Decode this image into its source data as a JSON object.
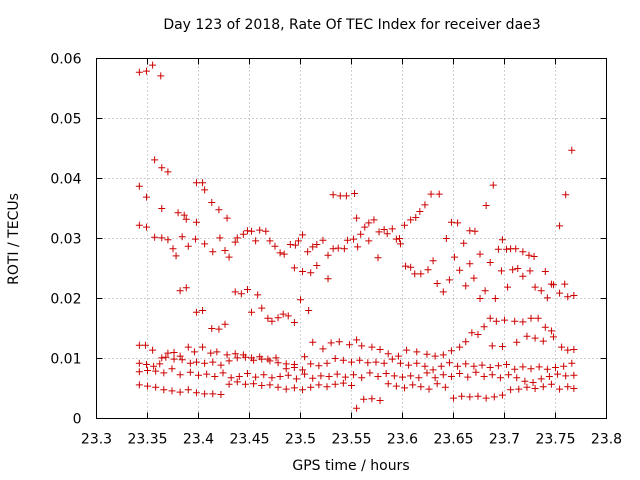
{
  "chart_data": {
    "type": "scatter",
    "title": "Day 123 of 2018, Rate Of TEC Index for receiver dae3",
    "xlabel": "GPS time / hours",
    "ylabel": "ROTI / TECUs",
    "xlim": [
      23.3,
      23.8
    ],
    "ylim": [
      0,
      0.06
    ],
    "x_ticks": [
      "23.3",
      "23.35",
      "23.4",
      "23.45",
      "23.5",
      "23.55",
      "23.6",
      "23.65",
      "23.7",
      "23.75",
      "23.8"
    ],
    "y_ticks": [
      "0",
      "0.01",
      "0.02",
      "0.03",
      "0.04",
      "0.05",
      "0.06"
    ],
    "marker": "+",
    "marker_color": "#cc0000",
    "grid": true,
    "points": [
      [
        23.342,
        0.0577
      ],
      [
        23.349,
        0.0579
      ],
      [
        23.355,
        0.0589
      ],
      [
        23.363,
        0.0571
      ],
      [
        23.342,
        0.0387
      ],
      [
        23.349,
        0.0369
      ],
      [
        23.357,
        0.0431
      ],
      [
        23.364,
        0.0418
      ],
      [
        23.37,
        0.0411
      ],
      [
        23.364,
        0.035
      ],
      [
        23.38,
        0.0343
      ],
      [
        23.386,
        0.0339
      ],
      [
        23.388,
        0.0332
      ],
      [
        23.398,
        0.0393
      ],
      [
        23.404,
        0.0393
      ],
      [
        23.406,
        0.0381
      ],
      [
        23.413,
        0.036
      ],
      [
        23.42,
        0.0348
      ],
      [
        23.428,
        0.0334
      ],
      [
        23.342,
        0.0322
      ],
      [
        23.349,
        0.0319
      ],
      [
        23.357,
        0.0302
      ],
      [
        23.364,
        0.0301
      ],
      [
        23.37,
        0.0298
      ],
      [
        23.375,
        0.0283
      ],
      [
        23.378,
        0.0271
      ],
      [
        23.384,
        0.0303
      ],
      [
        23.39,
        0.0287
      ],
      [
        23.398,
        0.0327
      ],
      [
        23.397,
        0.0299
      ],
      [
        23.406,
        0.0291
      ],
      [
        23.414,
        0.0278
      ],
      [
        23.421,
        0.0301
      ],
      [
        23.426,
        0.028
      ],
      [
        23.43,
        0.0269
      ],
      [
        23.436,
        0.0294
      ],
      [
        23.438,
        0.0301
      ],
      [
        23.444,
        0.0307
      ],
      [
        23.448,
        0.0313
      ],
      [
        23.452,
        0.0312
      ],
      [
        23.456,
        0.0296
      ],
      [
        23.46,
        0.0314
      ],
      [
        23.466,
        0.0312
      ],
      [
        23.47,
        0.0296
      ],
      [
        23.475,
        0.0287
      ],
      [
        23.48,
        0.0276
      ],
      [
        23.484,
        0.0274
      ],
      [
        23.49,
        0.029
      ],
      [
        23.495,
        0.0289
      ],
      [
        23.498,
        0.0296
      ],
      [
        23.502,
        0.0306
      ],
      [
        23.507,
        0.0278
      ],
      [
        23.512,
        0.0286
      ],
      [
        23.516,
        0.029
      ],
      [
        23.522,
        0.0297
      ],
      [
        23.527,
        0.0272
      ],
      [
        23.532,
        0.0283
      ],
      [
        23.537,
        0.0284
      ],
      [
        23.543,
        0.0283
      ],
      [
        23.546,
        0.0297
      ],
      [
        23.552,
        0.0299
      ],
      [
        23.556,
        0.0286
      ],
      [
        23.559,
        0.0307
      ],
      [
        23.563,
        0.0319
      ],
      [
        23.567,
        0.0296
      ],
      [
        23.572,
        0.0331
      ],
      [
        23.577,
        0.0311
      ],
      [
        23.582,
        0.0315
      ],
      [
        23.585,
        0.0308
      ],
      [
        23.59,
        0.0316
      ],
      [
        23.594,
        0.0299
      ],
      [
        23.598,
        0.0291
      ],
      [
        23.602,
        0.0322
      ],
      [
        23.608,
        0.0331
      ],
      [
        23.613,
        0.0335
      ],
      [
        23.617,
        0.0345
      ],
      [
        23.622,
        0.0356
      ],
      [
        23.628,
        0.0374
      ],
      [
        23.636,
        0.0374
      ],
      [
        23.643,
        0.03
      ],
      [
        23.648,
        0.0327
      ],
      [
        23.654,
        0.0326
      ],
      [
        23.66,
        0.0292
      ],
      [
        23.666,
        0.0313
      ],
      [
        23.671,
        0.0312
      ],
      [
        23.676,
        0.0274
      ],
      [
        23.682,
        0.0355
      ],
      [
        23.689,
        0.0389
      ],
      [
        23.694,
        0.0282
      ],
      [
        23.698,
        0.0298
      ],
      [
        23.702,
        0.0282
      ],
      [
        23.706,
        0.0283
      ],
      [
        23.711,
        0.0283
      ],
      [
        23.718,
        0.0278
      ],
      [
        23.724,
        0.0272
      ],
      [
        23.729,
        0.027
      ],
      [
        23.74,
        0.0245
      ],
      [
        23.746,
        0.0224
      ],
      [
        23.754,
        0.0321
      ],
      [
        23.76,
        0.0373
      ],
      [
        23.766,
        0.0447
      ],
      [
        23.532,
        0.0373
      ],
      [
        23.539,
        0.0371
      ],
      [
        23.545,
        0.0371
      ],
      [
        23.553,
        0.0375
      ],
      [
        23.555,
        0.0334
      ],
      [
        23.567,
        0.0326
      ],
      [
        23.576,
        0.0268
      ],
      [
        23.597,
        0.03
      ],
      [
        23.603,
        0.0254
      ],
      [
        23.608,
        0.0252
      ],
      [
        23.612,
        0.0241
      ],
      [
        23.618,
        0.0241
      ],
      [
        23.625,
        0.0248
      ],
      [
        23.63,
        0.0263
      ],
      [
        23.634,
        0.0225
      ],
      [
        23.64,
        0.0211
      ],
      [
        23.646,
        0.0231
      ],
      [
        23.651,
        0.0269
      ],
      [
        23.656,
        0.0247
      ],
      [
        23.662,
        0.0221
      ],
      [
        23.666,
        0.0258
      ],
      [
        23.67,
        0.0234
      ],
      [
        23.676,
        0.02
      ],
      [
        23.681,
        0.0213
      ],
      [
        23.686,
        0.026
      ],
      [
        23.691,
        0.02
      ],
      [
        23.697,
        0.0246
      ],
      [
        23.703,
        0.0219
      ],
      [
        23.708,
        0.0248
      ],
      [
        23.713,
        0.025
      ],
      [
        23.718,
        0.0237
      ],
      [
        23.725,
        0.0246
      ],
      [
        23.73,
        0.0219
      ],
      [
        23.736,
        0.0213
      ],
      [
        23.742,
        0.0201
      ],
      [
        23.748,
        0.0223
      ],
      [
        23.754,
        0.0209
      ],
      [
        23.759,
        0.0224
      ],
      [
        23.762,
        0.0203
      ],
      [
        23.768,
        0.0205
      ],
      [
        23.382,
        0.0213
      ],
      [
        23.388,
        0.0218
      ],
      [
        23.398,
        0.0177
      ],
      [
        23.404,
        0.018
      ],
      [
        23.413,
        0.015
      ],
      [
        23.42,
        0.0149
      ],
      [
        23.426,
        0.0157
      ],
      [
        23.436,
        0.0211
      ],
      [
        23.442,
        0.0208
      ],
      [
        23.448,
        0.0215
      ],
      [
        23.452,
        0.0177
      ],
      [
        23.458,
        0.0206
      ],
      [
        23.462,
        0.0184
      ],
      [
        23.468,
        0.0167
      ],
      [
        23.472,
        0.0162
      ],
      [
        23.478,
        0.0168
      ],
      [
        23.483,
        0.0174
      ],
      [
        23.488,
        0.0171
      ],
      [
        23.494,
        0.016
      ],
      [
        23.5,
        0.0198
      ],
      [
        23.51,
        0.0243
      ],
      [
        23.516,
        0.0255
      ],
      [
        23.508,
        0.018
      ],
      [
        23.494,
        0.0251
      ],
      [
        23.502,
        0.0245
      ],
      [
        23.527,
        0.0233
      ],
      [
        23.686,
        0.0167
      ],
      [
        23.692,
        0.0162
      ],
      [
        23.7,
        0.0164
      ],
      [
        23.71,
        0.0162
      ],
      [
        23.718,
        0.0161
      ],
      [
        23.726,
        0.0167
      ],
      [
        23.733,
        0.0167
      ],
      [
        23.74,
        0.0152
      ],
      [
        23.746,
        0.0146
      ],
      [
        23.342,
        0.0122
      ],
      [
        23.348,
        0.0122
      ],
      [
        23.355,
        0.0114
      ],
      [
        23.364,
        0.0101
      ],
      [
        23.37,
        0.0109
      ],
      [
        23.376,
        0.011
      ],
      [
        23.384,
        0.0098
      ],
      [
        23.39,
        0.0119
      ],
      [
        23.396,
        0.0111
      ],
      [
        23.404,
        0.0119
      ],
      [
        23.412,
        0.0109
      ],
      [
        23.418,
        0.0111
      ],
      [
        23.428,
        0.0106
      ],
      [
        23.436,
        0.0108
      ],
      [
        23.444,
        0.0106
      ],
      [
        23.452,
        0.0101
      ],
      [
        23.46,
        0.0103
      ],
      [
        23.468,
        0.0099
      ],
      [
        23.476,
        0.0101
      ],
      [
        23.486,
        0.0091
      ],
      [
        23.494,
        0.009
      ],
      [
        23.504,
        0.0103
      ],
      [
        23.512,
        0.0127
      ],
      [
        23.522,
        0.0116
      ],
      [
        23.53,
        0.0126
      ],
      [
        23.538,
        0.0128
      ],
      [
        23.548,
        0.0123
      ],
      [
        23.555,
        0.0131
      ],
      [
        23.56,
        0.0121
      ],
      [
        23.57,
        0.0119
      ],
      [
        23.578,
        0.0115
      ],
      [
        23.586,
        0.0108
      ],
      [
        23.596,
        0.0104
      ],
      [
        23.604,
        0.0114
      ],
      [
        23.614,
        0.0111
      ],
      [
        23.624,
        0.0107
      ],
      [
        23.632,
        0.0104
      ],
      [
        23.64,
        0.0106
      ],
      [
        23.648,
        0.0113
      ],
      [
        23.656,
        0.0119
      ],
      [
        23.662,
        0.0128
      ],
      [
        23.668,
        0.0143
      ],
      [
        23.674,
        0.014
      ],
      [
        23.68,
        0.0153
      ],
      [
        23.688,
        0.0121
      ],
      [
        23.698,
        0.012
      ],
      [
        23.712,
        0.0127
      ],
      [
        23.722,
        0.0137
      ],
      [
        23.73,
        0.0134
      ],
      [
        23.738,
        0.0129
      ],
      [
        23.748,
        0.0136
      ],
      [
        23.756,
        0.0119
      ],
      [
        23.762,
        0.0114
      ],
      [
        23.768,
        0.0115
      ],
      [
        23.342,
        0.0092
      ],
      [
        23.349,
        0.009
      ],
      [
        23.356,
        0.0087
      ],
      [
        23.362,
        0.0091
      ],
      [
        23.368,
        0.0102
      ],
      [
        23.376,
        0.0099
      ],
      [
        23.382,
        0.0104
      ],
      [
        23.392,
        0.0092
      ],
      [
        23.398,
        0.0094
      ],
      [
        23.406,
        0.0092
      ],
      [
        23.414,
        0.0094
      ],
      [
        23.422,
        0.0089
      ],
      [
        23.43,
        0.0096
      ],
      [
        23.438,
        0.0101
      ],
      [
        23.446,
        0.0102
      ],
      [
        23.454,
        0.0097
      ],
      [
        23.462,
        0.0099
      ],
      [
        23.47,
        0.0096
      ],
      [
        23.478,
        0.0093
      ],
      [
        23.486,
        0.0083
      ],
      [
        23.494,
        0.0085
      ],
      [
        23.502,
        0.0081
      ],
      [
        23.51,
        0.0091
      ],
      [
        23.518,
        0.0088
      ],
      [
        23.526,
        0.0092
      ],
      [
        23.534,
        0.01
      ],
      [
        23.542,
        0.0097
      ],
      [
        23.55,
        0.0094
      ],
      [
        23.558,
        0.0097
      ],
      [
        23.566,
        0.0093
      ],
      [
        23.574,
        0.0094
      ],
      [
        23.582,
        0.0092
      ],
      [
        23.59,
        0.0099
      ],
      [
        23.598,
        0.0092
      ],
      [
        23.606,
        0.0089
      ],
      [
        23.614,
        0.0092
      ],
      [
        23.622,
        0.0087
      ],
      [
        23.63,
        0.0081
      ],
      [
        23.638,
        0.0087
      ],
      [
        23.646,
        0.0093
      ],
      [
        23.654,
        0.0087
      ],
      [
        23.662,
        0.0091
      ],
      [
        23.67,
        0.0087
      ],
      [
        23.678,
        0.0089
      ],
      [
        23.686,
        0.0085
      ],
      [
        23.694,
        0.0088
      ],
      [
        23.702,
        0.009
      ],
      [
        23.71,
        0.0082
      ],
      [
        23.718,
        0.0086
      ],
      [
        23.726,
        0.0083
      ],
      [
        23.734,
        0.0086
      ],
      [
        23.742,
        0.0082
      ],
      [
        23.75,
        0.0085
      ],
      [
        23.758,
        0.0087
      ],
      [
        23.766,
        0.0092
      ],
      [
        23.342,
        0.0078
      ],
      [
        23.35,
        0.008
      ],
      [
        23.358,
        0.0079
      ],
      [
        23.366,
        0.0076
      ],
      [
        23.374,
        0.0083
      ],
      [
        23.382,
        0.0073
      ],
      [
        23.392,
        0.0077
      ],
      [
        23.4,
        0.0072
      ],
      [
        23.408,
        0.0074
      ],
      [
        23.416,
        0.007
      ],
      [
        23.424,
        0.0076
      ],
      [
        23.432,
        0.0068
      ],
      [
        23.44,
        0.007
      ],
      [
        23.448,
        0.0075
      ],
      [
        23.456,
        0.0069
      ],
      [
        23.464,
        0.0073
      ],
      [
        23.472,
        0.0068
      ],
      [
        23.48,
        0.007
      ],
      [
        23.488,
        0.0072
      ],
      [
        23.496,
        0.0066
      ],
      [
        23.504,
        0.0074
      ],
      [
        23.512,
        0.0067
      ],
      [
        23.52,
        0.0071
      ],
      [
        23.528,
        0.007
      ],
      [
        23.536,
        0.0074
      ],
      [
        23.544,
        0.0069
      ],
      [
        23.552,
        0.0073
      ],
      [
        23.56,
        0.0068
      ],
      [
        23.568,
        0.0076
      ],
      [
        23.576,
        0.007
      ],
      [
        23.584,
        0.0075
      ],
      [
        23.592,
        0.0071
      ],
      [
        23.6,
        0.0069
      ],
      [
        23.608,
        0.0071
      ],
      [
        23.616,
        0.0068
      ],
      [
        23.624,
        0.0076
      ],
      [
        23.632,
        0.0068
      ],
      [
        23.64,
        0.0073
      ],
      [
        23.648,
        0.007
      ],
      [
        23.656,
        0.0075
      ],
      [
        23.664,
        0.0069
      ],
      [
        23.672,
        0.0077
      ],
      [
        23.68,
        0.007
      ],
      [
        23.688,
        0.0073
      ],
      [
        23.696,
        0.0068
      ],
      [
        23.704,
        0.0073
      ],
      [
        23.712,
        0.0068
      ],
      [
        23.72,
        0.0062
      ],
      [
        23.728,
        0.006
      ],
      [
        23.736,
        0.0066
      ],
      [
        23.744,
        0.007
      ],
      [
        23.752,
        0.0074
      ],
      [
        23.76,
        0.0071
      ],
      [
        23.768,
        0.0072
      ],
      [
        23.342,
        0.0056
      ],
      [
        23.35,
        0.0054
      ],
      [
        23.358,
        0.0052
      ],
      [
        23.366,
        0.0048
      ],
      [
        23.374,
        0.0046
      ],
      [
        23.382,
        0.0044
      ],
      [
        23.39,
        0.0048
      ],
      [
        23.398,
        0.0043
      ],
      [
        23.406,
        0.0041
      ],
      [
        23.414,
        0.0041
      ],
      [
        23.422,
        0.004
      ],
      [
        23.43,
        0.0057
      ],
      [
        23.438,
        0.0061
      ],
      [
        23.446,
        0.0057
      ],
      [
        23.454,
        0.0058
      ],
      [
        23.462,
        0.0055
      ],
      [
        23.47,
        0.0056
      ],
      [
        23.478,
        0.0052
      ],
      [
        23.486,
        0.0049
      ],
      [
        23.494,
        0.0051
      ],
      [
        23.502,
        0.0048
      ],
      [
        23.51,
        0.0052
      ],
      [
        23.518,
        0.0056
      ],
      [
        23.526,
        0.0053
      ],
      [
        23.534,
        0.0057
      ],
      [
        23.542,
        0.0059
      ],
      [
        23.55,
        0.0055
      ],
      [
        23.555,
        0.0017
      ],
      [
        23.562,
        0.0032
      ],
      [
        23.57,
        0.0033
      ],
      [
        23.578,
        0.003
      ],
      [
        23.586,
        0.0058
      ],
      [
        23.594,
        0.0054
      ],
      [
        23.602,
        0.0051
      ],
      [
        23.61,
        0.0056
      ],
      [
        23.618,
        0.0053
      ],
      [
        23.626,
        0.0049
      ],
      [
        23.634,
        0.0058
      ],
      [
        23.642,
        0.0052
      ],
      [
        23.65,
        0.0034
      ],
      [
        23.658,
        0.0037
      ],
      [
        23.666,
        0.0036
      ],
      [
        23.674,
        0.0037
      ],
      [
        23.682,
        0.0034
      ],
      [
        23.69,
        0.0036
      ],
      [
        23.698,
        0.0039
      ],
      [
        23.706,
        0.0048
      ],
      [
        23.714,
        0.0049
      ],
      [
        23.722,
        0.0052
      ],
      [
        23.73,
        0.005
      ],
      [
        23.738,
        0.0053
      ],
      [
        23.746,
        0.0057
      ],
      [
        23.754,
        0.0049
      ],
      [
        23.762,
        0.0053
      ],
      [
        23.768,
        0.005
      ]
    ]
  }
}
